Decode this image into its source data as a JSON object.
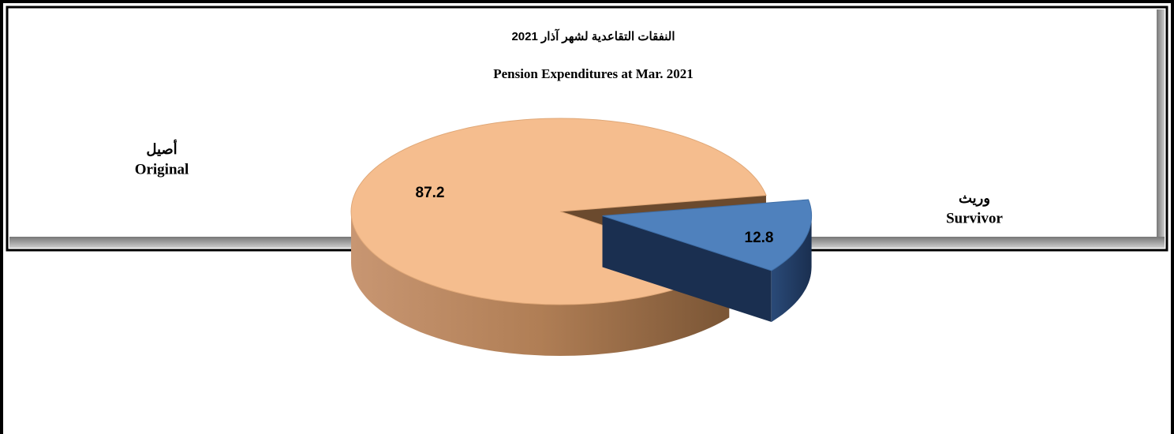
{
  "chart_data": {
    "type": "pie3d",
    "title": "النفقات التقاعدية لشهر آذار 2021",
    "subtitle": "Pension Expenditures at Mar. 2021",
    "categories": [
      "Original",
      "Survivor"
    ],
    "categories_arabic": [
      "أصيل",
      "وريث"
    ],
    "values": [
      87.2,
      12.8
    ],
    "colors": [
      "#f5bd8e",
      "#4f81bd"
    ],
    "exploded": [
      false,
      true
    ]
  }
}
